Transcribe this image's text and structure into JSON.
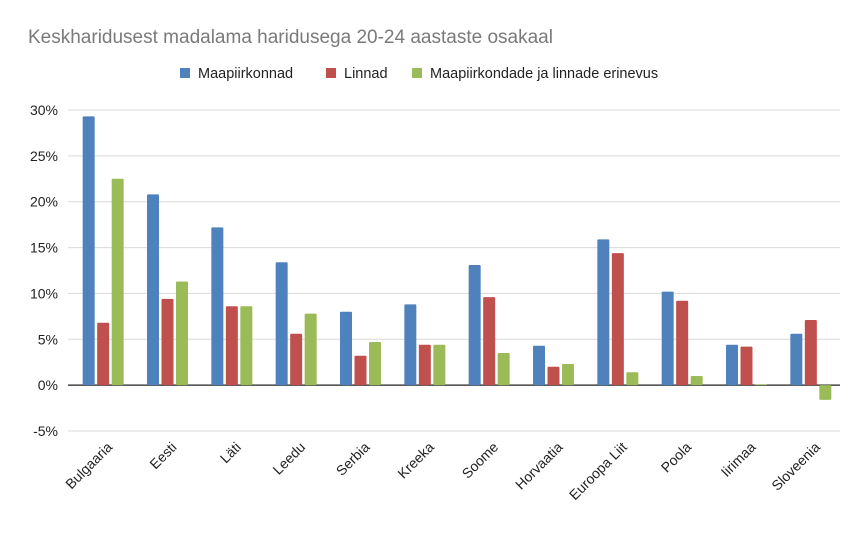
{
  "chart_data": {
    "type": "bar",
    "title": "Keskharidusest madalama haridusega 20-24 aastaste osakaal",
    "categories": [
      "Bulgaaria",
      "Eesti",
      "Läti",
      "Leedu",
      "Serbia",
      "Kreeka",
      "Soome",
      "Horvaatia",
      "Euroopa Liit",
      "Poola",
      "Iirimaa",
      "Sloveenia"
    ],
    "series": [
      {
        "name": "Maapiirkonnad",
        "color": "#4f81bd",
        "values": [
          29.3,
          20.8,
          17.2,
          13.4,
          8.0,
          8.8,
          13.1,
          4.3,
          15.9,
          10.2,
          4.4,
          5.6
        ]
      },
      {
        "name": "Linnad",
        "color": "#c0504d",
        "values": [
          6.8,
          9.4,
          8.6,
          5.6,
          3.2,
          4.4,
          9.6,
          2.0,
          14.4,
          9.2,
          4.2,
          7.1
        ]
      },
      {
        "name": "Maapiirkondade ja linnade erinevus",
        "color": "#9bbb59",
        "values": [
          22.5,
          11.3,
          8.6,
          7.8,
          4.7,
          4.4,
          3.5,
          2.3,
          1.4,
          1.0,
          0.1,
          -1.6
        ]
      }
    ],
    "ylim": [
      -5,
      30
    ],
    "yticks": [
      30,
      25,
      20,
      15,
      10,
      5,
      0,
      -5
    ],
    "ytick_labels": [
      "30%",
      "25%",
      "20%",
      "15%",
      "10%",
      "5%",
      "0%",
      "-5%"
    ],
    "xlabel": "",
    "ylabel": "",
    "legend_position": "top",
    "grid": true
  }
}
